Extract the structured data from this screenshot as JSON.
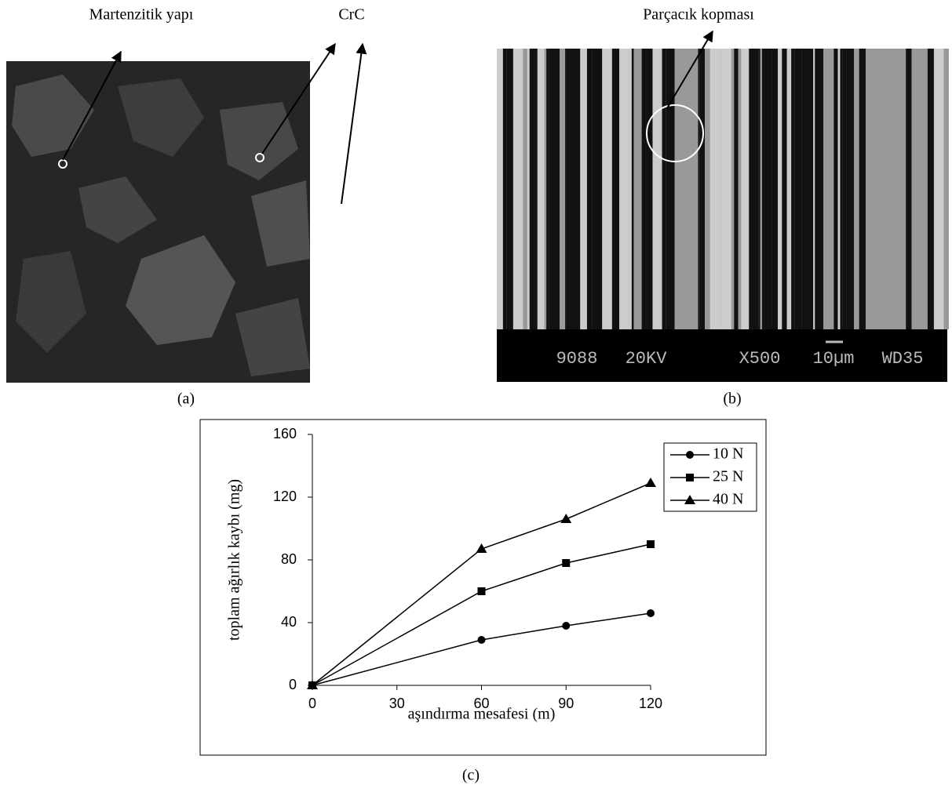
{
  "panels": {
    "a": {
      "caption": "(a)",
      "labels": [
        "Martenzitik yapı",
        "CrC"
      ]
    },
    "b": {
      "caption": "(b)",
      "labels": [
        "Parçacık kopması"
      ],
      "sem_bar": [
        "9088",
        "20KV",
        "X500",
        "10µm",
        "WD35"
      ]
    },
    "c": {
      "caption": "(c)"
    }
  },
  "chart_data": {
    "type": "line",
    "x_label": "aşındırma mesafesi (m)",
    "y_label": "toplam ağırlık kaybı (mg)",
    "x": [
      0,
      60,
      90,
      120
    ],
    "series": [
      {
        "name": "10 N",
        "color": "#000000",
        "marker": "circle",
        "values": [
          0,
          29,
          38,
          46
        ]
      },
      {
        "name": "25 N",
        "color": "#000000",
        "marker": "square",
        "values": [
          0,
          60,
          78,
          90
        ]
      },
      {
        "name": "40 N",
        "color": "#000000",
        "marker": "triangle",
        "values": [
          0,
          87,
          106,
          129
        ]
      }
    ],
    "xlim": [
      0,
      120
    ],
    "xticks": [
      0,
      30,
      60,
      90,
      120
    ],
    "ylim": [
      0,
      160
    ],
    "yticks": [
      0,
      40,
      80,
      120,
      160
    ],
    "grid": false,
    "legend": "top-right"
  }
}
